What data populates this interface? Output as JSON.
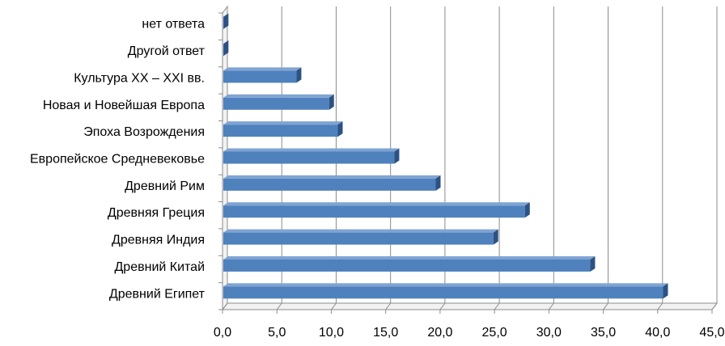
{
  "chart_data": {
    "type": "bar",
    "orientation": "horizontal",
    "style": "3d",
    "title": "",
    "xlabel": "",
    "ylabel": "",
    "categories": [
      "Древний Египет",
      "Древний Китай",
      "Древняя Индия",
      "Древняя Греция",
      "Древний Рим",
      "Европейское Средневековье",
      "Эпоха Возрождения",
      "Новая и Новейшая Европа",
      "Культура XX – XXI вв.",
      "Другой ответ",
      "нет ответа"
    ],
    "values": [
      40.5,
      33.8,
      24.9,
      27.8,
      19.6,
      15.8,
      10.6,
      9.8,
      6.8,
      0.1,
      0.1
    ],
    "xlim": [
      0,
      45
    ],
    "xticks": [
      "0,0",
      "5,0",
      "10,0",
      "15,0",
      "20,0",
      "25,0",
      "30,0",
      "35,0",
      "40,0",
      "45,0"
    ],
    "grid": "vertical",
    "legend": "none",
    "colors": {
      "bar_front": "#4F81BD",
      "bar_top": "#7FA4D3",
      "bar_side": "#2C5283",
      "grid": "#8C8C8C"
    }
  }
}
